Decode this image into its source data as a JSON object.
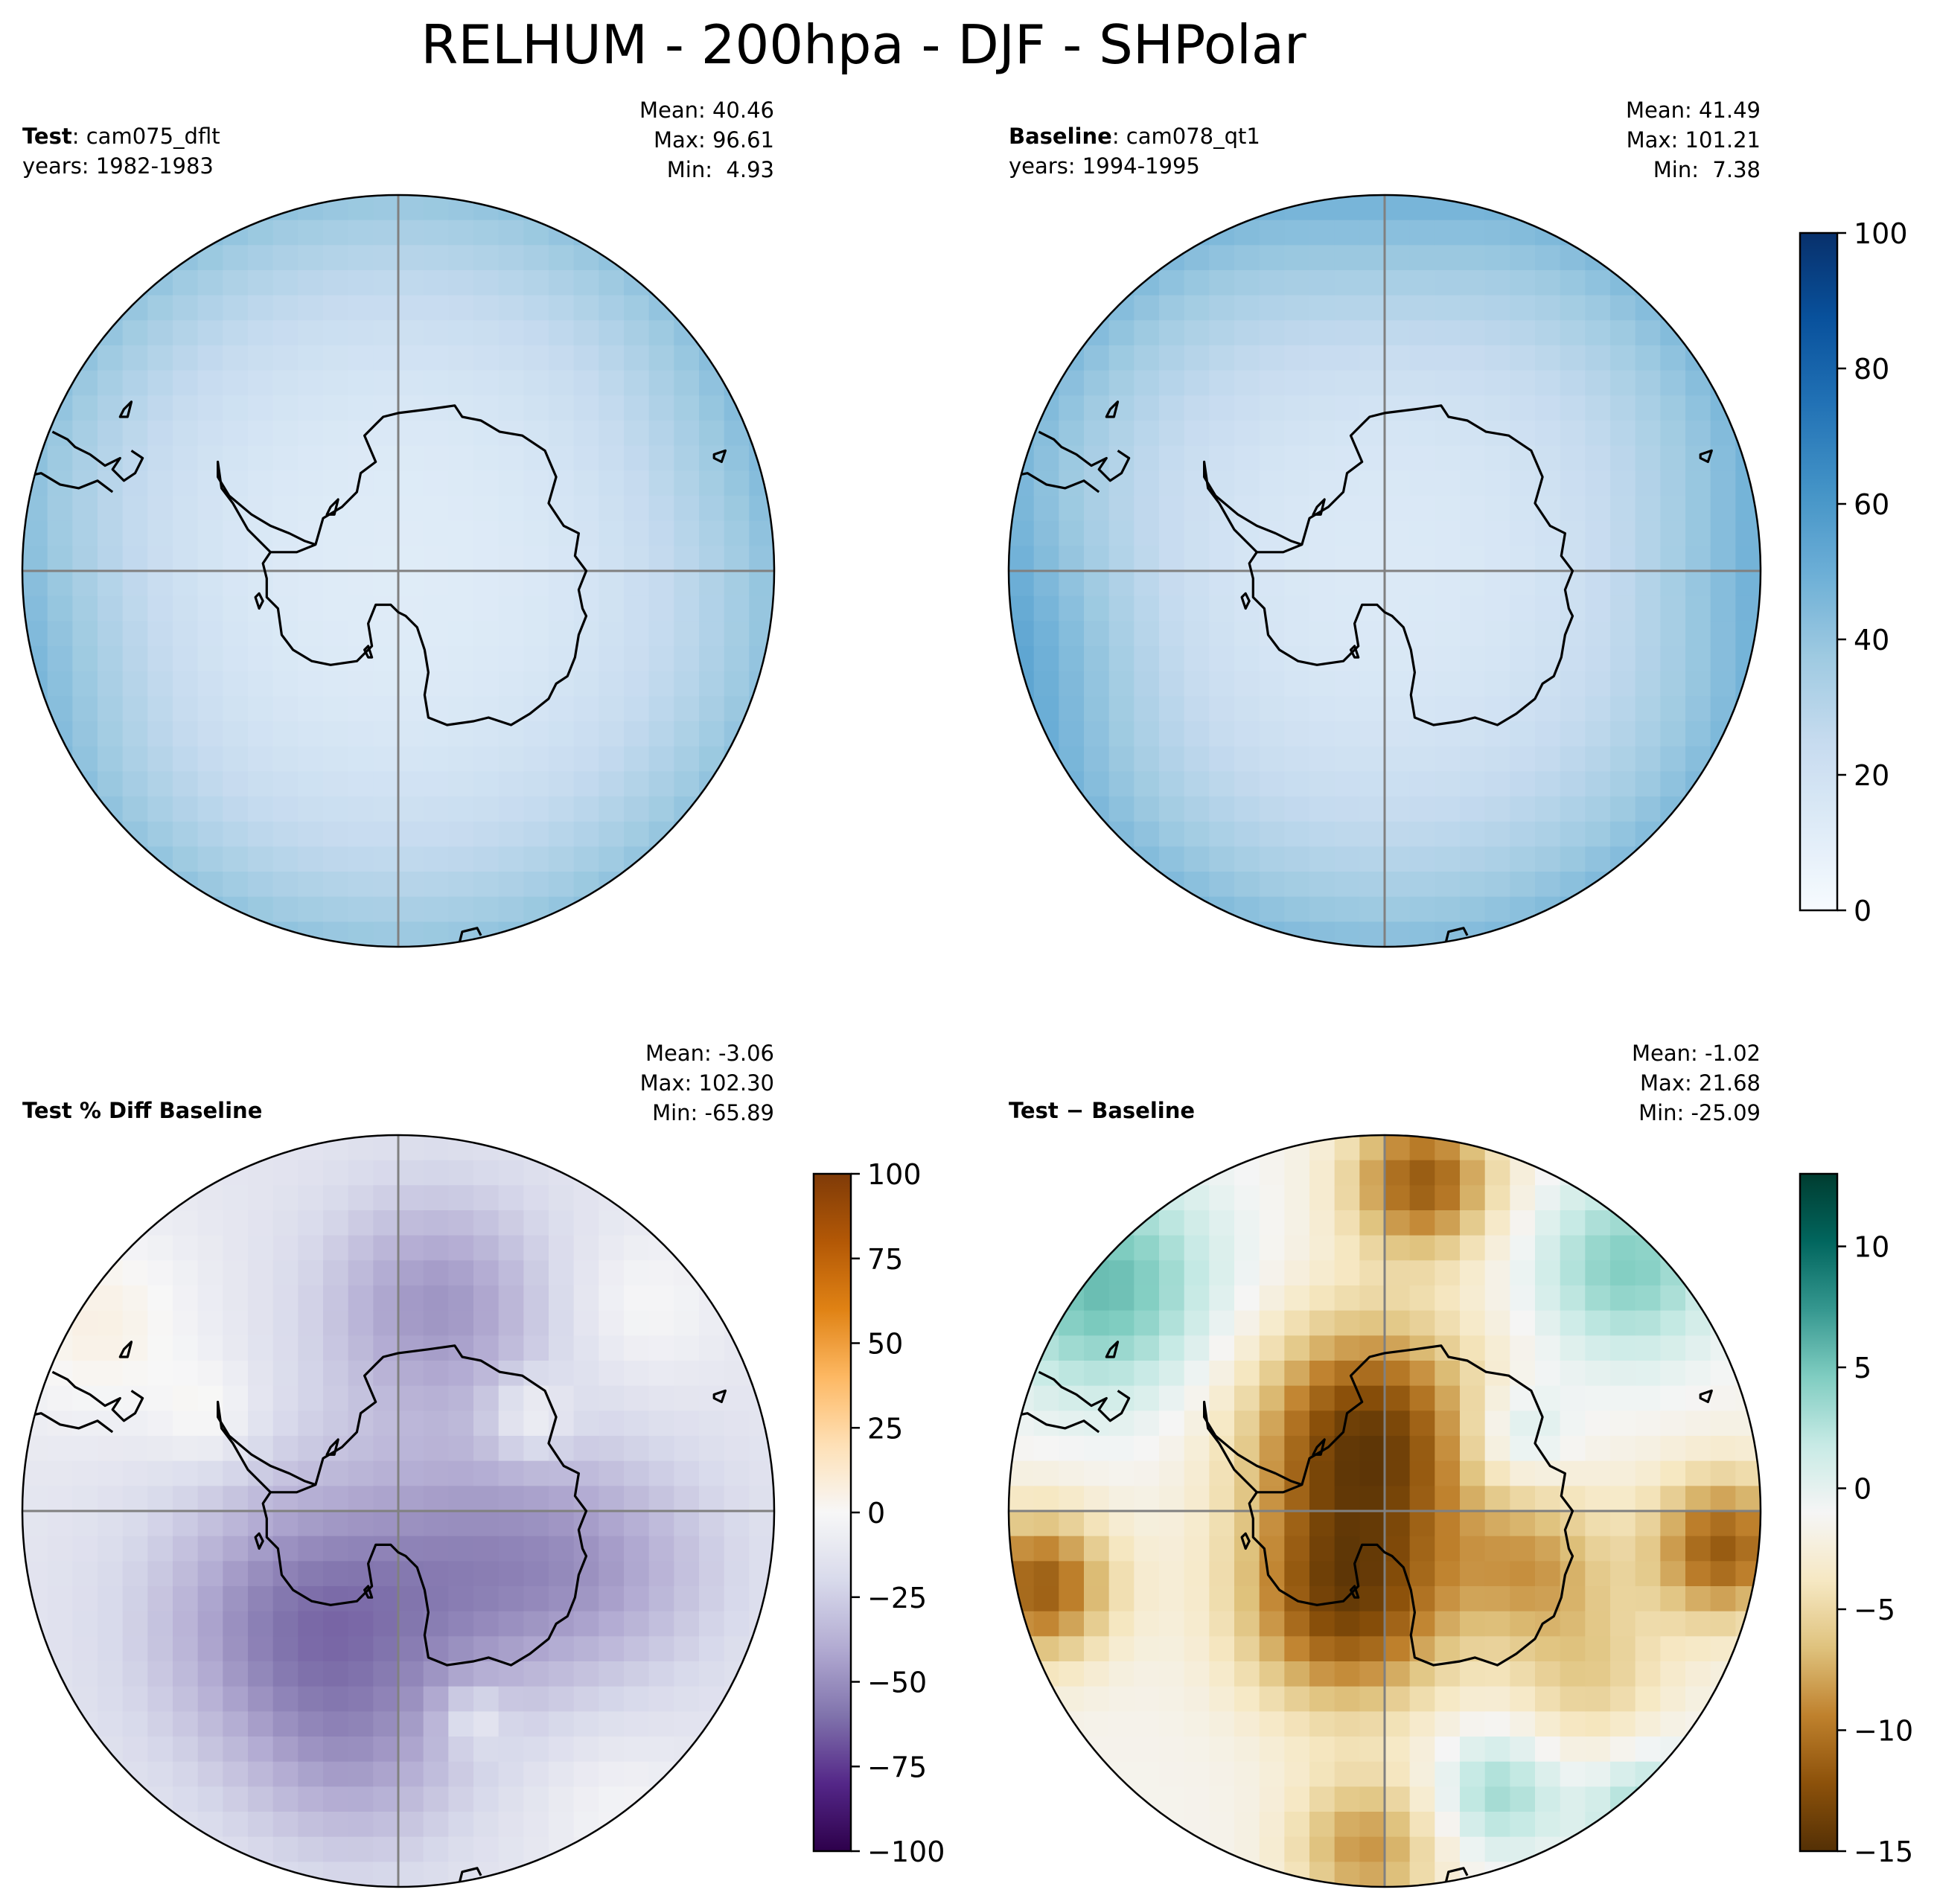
{
  "title": "RELHUM - 200hpa - DJF - SHPolar",
  "panels": [
    {
      "id": "test",
      "label_bold": "Test",
      "label_rest": ": cam075_dflt",
      "subtitle": "years: 1982-1983",
      "stats": {
        "mean": "Mean: 40.46",
        "max": "Max: 96.61",
        "min": "Min:  4.93"
      },
      "cmap": "Blues",
      "pattern": "base_test"
    },
    {
      "id": "baseline",
      "label_bold": "Baseline",
      "label_rest": ": cam078_qt1",
      "subtitle": "years: 1994-1995",
      "stats": {
        "mean": "Mean: 41.49",
        "max": "Max: 101.21",
        "min": "Min:  7.38"
      },
      "cmap": "Blues",
      "pattern": "base_baseline"
    },
    {
      "id": "pctdiff",
      "label_bold": "Test % Diff Baseline",
      "label_rest": "",
      "subtitle": "",
      "stats": {
        "mean": "Mean: -3.06",
        "max": "Max: 102.30",
        "min": "Min: -65.89"
      },
      "cmap": "PuOr",
      "pattern": "pctdiff"
    },
    {
      "id": "diff",
      "label_bold": "Test",
      "label_rest": " − Baseline",
      "subtitle": "",
      "stats": {
        "mean": "Mean: -1.02",
        "max": "Max: 21.68",
        "min": "Min: -25.09"
      },
      "cmap": "BrBG",
      "pattern": "diff"
    }
  ],
  "colorbars": [
    {
      "id": "cb-top",
      "cmap": "Blues",
      "min": 0,
      "max": 100,
      "ticks": [
        "0",
        "20",
        "40",
        "60",
        "80",
        "100"
      ],
      "tick_values": [
        0,
        20,
        40,
        60,
        80,
        100
      ]
    },
    {
      "id": "cb-pct",
      "cmap": "PuOr",
      "min": -100,
      "max": 100,
      "ticks": [
        "−100",
        "−75",
        "−50",
        "−25",
        "0",
        "25",
        "50",
        "75",
        "100"
      ],
      "tick_values": [
        -100,
        -75,
        -50,
        -25,
        0,
        25,
        50,
        75,
        100
      ]
    },
    {
      "id": "cb-diff",
      "cmap": "BrBG",
      "min": -15,
      "max": 13,
      "ticks": [
        "−15",
        "−10",
        "−5",
        "0",
        "5",
        "10"
      ],
      "tick_values": [
        -15,
        -10,
        -5,
        0,
        5,
        10
      ]
    }
  ],
  "chart_data": [
    {
      "type": "heatmap",
      "projection": "south polar stereographic",
      "panel": "Test",
      "variable": "RELHUM",
      "level": "200hpa",
      "season": "DJF",
      "region": "SHPolar",
      "case": "cam075_dflt",
      "years": "1982-1983",
      "mean": 40.46,
      "max": 96.61,
      "min": 4.93,
      "colorbar": {
        "min": 0,
        "max": 100
      }
    },
    {
      "type": "heatmap",
      "projection": "south polar stereographic",
      "panel": "Baseline",
      "variable": "RELHUM",
      "level": "200hpa",
      "season": "DJF",
      "region": "SHPolar",
      "case": "cam078_qt1",
      "years": "1994-1995",
      "mean": 41.49,
      "max": 101.21,
      "min": 7.38,
      "colorbar": {
        "min": 0,
        "max": 100
      }
    },
    {
      "type": "heatmap",
      "projection": "south polar stereographic",
      "panel": "Test % Diff Baseline",
      "mean": -3.06,
      "max": 102.3,
      "min": -65.89,
      "colorbar": {
        "min": -100,
        "max": 100
      }
    },
    {
      "type": "heatmap",
      "projection": "south polar stereographic",
      "panel": "Test − Baseline",
      "mean": -1.02,
      "max": 21.68,
      "min": -25.09,
      "colorbar": {
        "min": -15,
        "max": 13
      }
    }
  ],
  "colors": {
    "grid_line": "#808080",
    "coastline": "#000000",
    "frame": "#000000"
  }
}
